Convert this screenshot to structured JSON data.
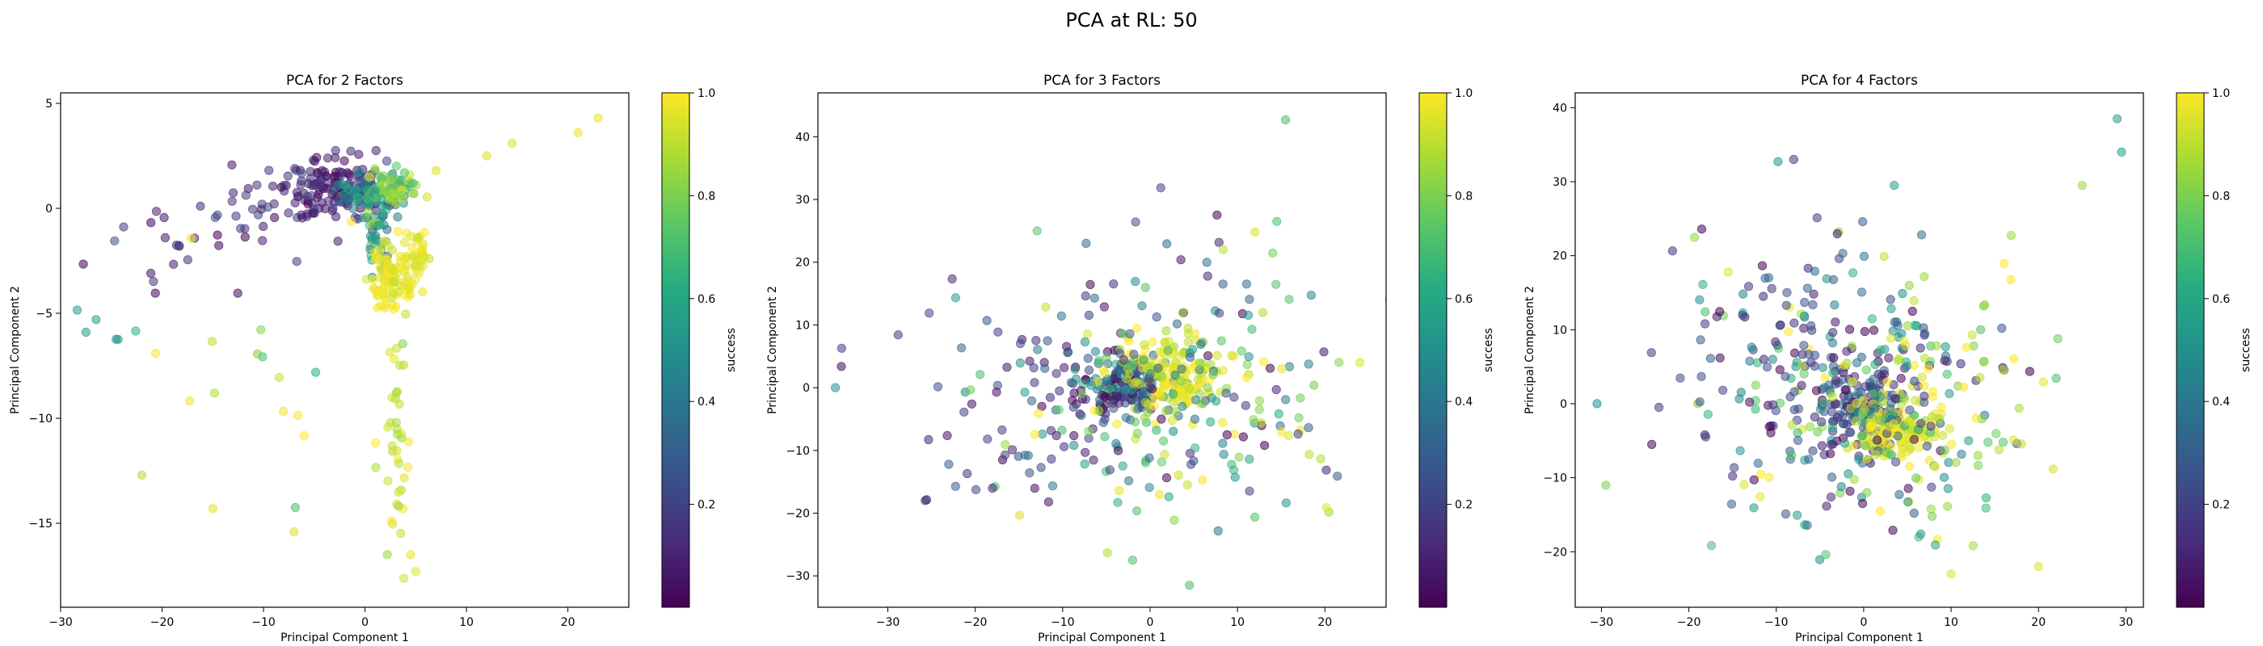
{
  "figure": {
    "suptitle": "PCA at RL: 50"
  },
  "chart_data": [
    {
      "type": "scatter",
      "title": "PCA for 2 Factors",
      "xlabel": "Principal Component 1",
      "ylabel": "Principal Component 2",
      "xlim": [
        -30,
        26
      ],
      "ylim": [
        -19,
        5.5
      ],
      "xticks": [
        -30,
        -20,
        -10,
        0,
        10,
        20
      ],
      "yticks": [
        -15,
        -10,
        -5,
        0,
        5
      ],
      "colorbar": {
        "label": "success",
        "range": [
          0,
          1
        ],
        "ticks": [
          0.2,
          0.4,
          0.6,
          0.8,
          1.0
        ],
        "colormap": "viridis"
      },
      "grid": false,
      "clusters": [
        {
          "x": -3,
          "y": 0.9,
          "sx": 2.6,
          "sy": 0.8,
          "c": 0.08,
          "sc": 0.05,
          "n": 130
        },
        {
          "x": -8,
          "y": 0.2,
          "sx": 4.5,
          "sy": 0.9,
          "c": 0.12,
          "sc": 0.08,
          "n": 35
        },
        {
          "x": 0.5,
          "y": 0.8,
          "sx": 1.6,
          "sy": 0.6,
          "c": 0.45,
          "sc": 0.12,
          "n": 70
        },
        {
          "x": 2.5,
          "y": 0.9,
          "sx": 1.4,
          "sy": 0.4,
          "c": 0.82,
          "sc": 0.08,
          "n": 60
        },
        {
          "x": 1.3,
          "y": -1.2,
          "sx": 0.5,
          "sy": 1.0,
          "c": 0.55,
          "sc": 0.15,
          "n": 40
        },
        {
          "x": 2.7,
          "y": -3.3,
          "sx": 1.2,
          "sy": 0.8,
          "c": 0.97,
          "sc": 0.03,
          "n": 90
        },
        {
          "x": 5,
          "y": -2.3,
          "sx": 0.6,
          "sy": 0.7,
          "c": 0.97,
          "sc": 0.03,
          "n": 30
        },
        {
          "x": 3,
          "y": -10,
          "sx": 0.6,
          "sy": 3.5,
          "c": 0.92,
          "sc": 0.05,
          "n": 45
        },
        {
          "x": -16,
          "y": -1.6,
          "sx": 5,
          "sy": 1.2,
          "c": 0.1,
          "sc": 0.08,
          "n": 25
        },
        {
          "x": -11,
          "y": -8.5,
          "sx": 5,
          "sy": 4,
          "c": 0.85,
          "sc": 0.15,
          "n": 18
        },
        {
          "x": -24,
          "y": -5.5,
          "sx": 3,
          "sy": 0.6,
          "c": 0.55,
          "sc": 0.05,
          "n": 4
        }
      ],
      "points": [
        {
          "x": 23,
          "y": 4.3,
          "c": 0.97
        },
        {
          "x": 21,
          "y": 3.6,
          "c": 0.97
        },
        {
          "x": 14.5,
          "y": 3.1,
          "c": 0.95
        },
        {
          "x": 12,
          "y": 2.5,
          "c": 0.95
        },
        {
          "x": 4.5,
          "y": -16.5,
          "c": 0.96
        },
        {
          "x": 5,
          "y": -17.3,
          "c": 0.96
        },
        {
          "x": -7,
          "y": -15.4,
          "c": 0.95
        },
        {
          "x": -15,
          "y": -14.3,
          "c": 0.95
        },
        {
          "x": -27.5,
          "y": -5.9,
          "c": 0.55
        },
        {
          "x": -26.5,
          "y": -5.3,
          "c": 0.55
        },
        {
          "x": 7,
          "y": 1.8,
          "c": 0.95
        }
      ]
    },
    {
      "type": "scatter",
      "title": "PCA for 3 Factors",
      "xlabel": "Principal Component 1",
      "ylabel": "Principal Component 2",
      "xlim": [
        -38,
        27
      ],
      "ylim": [
        -35,
        47
      ],
      "xticks": [
        -30,
        -20,
        -10,
        0,
        10,
        20
      ],
      "yticks": [
        -30,
        -20,
        -10,
        0,
        10,
        20,
        30,
        40
      ],
      "colorbar": {
        "label": "success",
        "range": [
          0,
          1
        ],
        "ticks": [
          0.2,
          0.4,
          0.6,
          0.8,
          1.0
        ],
        "colormap": "viridis"
      },
      "grid": false,
      "clusters": [
        {
          "x": -3,
          "y": 0,
          "sx": 2.5,
          "sy": 2.5,
          "c": 0.25,
          "sc": 0.2,
          "n": 160
        },
        {
          "x": 3,
          "y": 2,
          "sx": 3,
          "sy": 3,
          "c": 0.95,
          "sc": 0.06,
          "n": 150
        },
        {
          "x": 0,
          "y": 0,
          "sx": 10,
          "sy": 10,
          "c": 0.5,
          "sc": 0.35,
          "n": 200
        },
        {
          "x": -15,
          "y": -5,
          "sx": 8,
          "sy": 10,
          "c": 0.15,
          "sc": 0.1,
          "n": 50
        },
        {
          "x": 10,
          "y": -5,
          "sx": 8,
          "sy": 10,
          "c": 0.85,
          "sc": 0.1,
          "n": 40
        }
      ],
      "points": [
        {
          "x": 15.5,
          "y": 42.7,
          "c": 0.7
        },
        {
          "x": 14.5,
          "y": 26.5,
          "c": 0.7
        },
        {
          "x": 12,
          "y": 24.8,
          "c": 0.95
        },
        {
          "x": -36,
          "y": 0,
          "c": 0.5
        },
        {
          "x": 4.5,
          "y": -31.5,
          "c": 0.7
        },
        {
          "x": -2,
          "y": -27.5,
          "c": 0.7
        },
        {
          "x": 24,
          "y": 4,
          "c": 0.95
        }
      ]
    },
    {
      "type": "scatter",
      "title": "PCA for 4 Factors",
      "xlabel": "Principal Component 1",
      "ylabel": "Principal Component 2",
      "xlim": [
        -33,
        32
      ],
      "ylim": [
        -27.5,
        42
      ],
      "xticks": [
        -30,
        -20,
        -10,
        0,
        10,
        20,
        30
      ],
      "yticks": [
        -20,
        -10,
        0,
        10,
        20,
        30,
        40
      ],
      "colorbar": {
        "label": "success",
        "range": [
          0,
          1
        ],
        "ticks": [
          0.2,
          0.4,
          0.6,
          0.8,
          1.0
        ],
        "colormap": "viridis"
      },
      "grid": false,
      "clusters": [
        {
          "x": -0.5,
          "y": 0,
          "sx": 2.5,
          "sy": 3,
          "c": 0.2,
          "sc": 0.12,
          "n": 130
        },
        {
          "x": 4,
          "y": -3.5,
          "sx": 2.5,
          "sy": 2,
          "c": 0.95,
          "sc": 0.05,
          "n": 140
        },
        {
          "x": 0,
          "y": 1,
          "sx": 9,
          "sy": 9,
          "c": 0.5,
          "sc": 0.35,
          "n": 260
        },
        {
          "x": -10,
          "y": 8,
          "sx": 7,
          "sy": 9,
          "c": 0.2,
          "sc": 0.12,
          "n": 60
        },
        {
          "x": 10,
          "y": 2,
          "sx": 7,
          "sy": 8,
          "c": 0.85,
          "sc": 0.1,
          "n": 50
        }
      ],
      "points": [
        {
          "x": 29,
          "y": 38.5,
          "c": 0.55
        },
        {
          "x": 29.5,
          "y": 34,
          "c": 0.55
        },
        {
          "x": 25,
          "y": 29.5,
          "c": 0.85
        },
        {
          "x": 3.5,
          "y": 29.5,
          "c": 0.55
        },
        {
          "x": -8,
          "y": 33,
          "c": 0.15
        },
        {
          "x": -30.5,
          "y": 0,
          "c": 0.5
        },
        {
          "x": -29.5,
          "y": -11,
          "c": 0.8
        },
        {
          "x": 20,
          "y": -22,
          "c": 0.95
        },
        {
          "x": 10,
          "y": -23,
          "c": 0.95
        }
      ]
    }
  ]
}
